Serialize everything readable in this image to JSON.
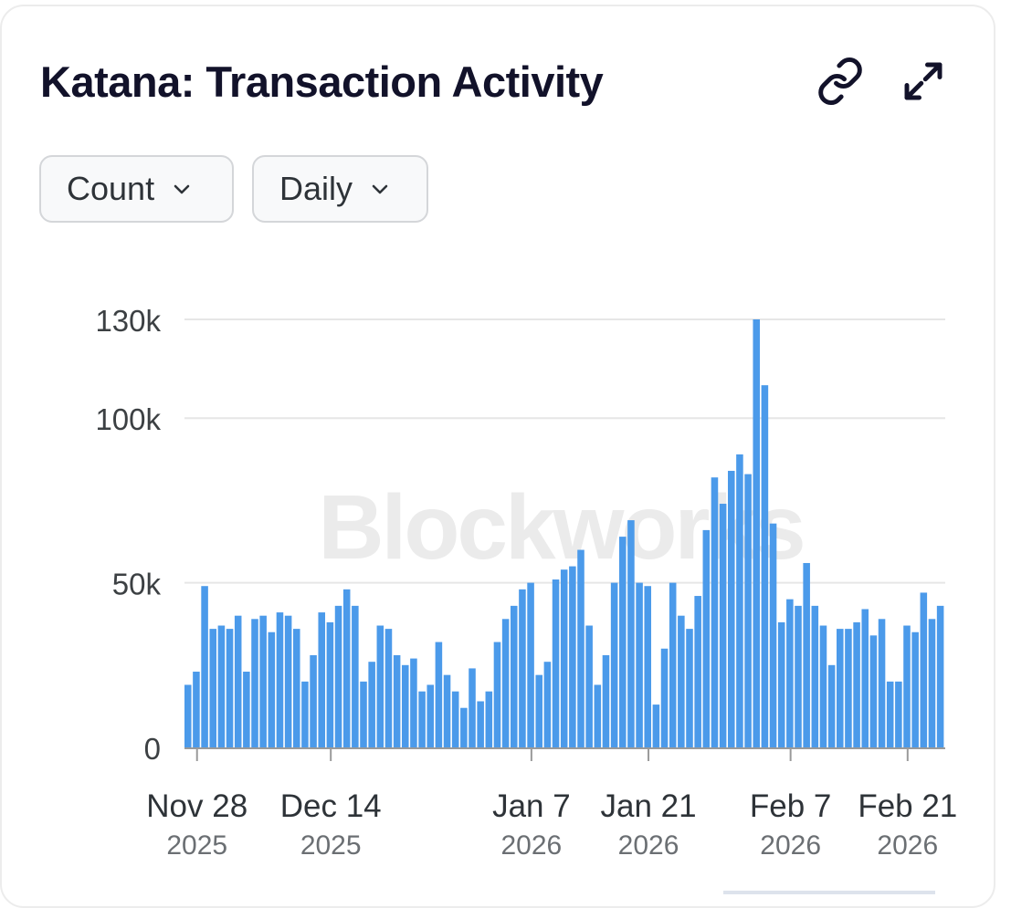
{
  "header": {
    "title": "Katana: Transaction Activity",
    "link_icon": "link-icon",
    "expand_icon": "expand-icon"
  },
  "controls": {
    "metric": "Count",
    "interval": "Daily"
  },
  "colors": {
    "bar": "#4b9aea",
    "grid": "#e6e6e6",
    "axis": "#9a9a9a",
    "watermark": "#ebebeb"
  },
  "watermark": "Blockworks",
  "chart_data": {
    "type": "bar",
    "title": "Katana: Transaction Activity",
    "xlabel": "",
    "ylabel": "",
    "ylim": [
      0,
      130000
    ],
    "yticks": [
      {
        "value": 0,
        "label": "0"
      },
      {
        "value": 50000,
        "label": "50k"
      },
      {
        "value": 100000,
        "label": "100k"
      },
      {
        "value": 130000,
        "label": "130k"
      }
    ],
    "xticks": [
      {
        "date": "2025-11-28",
        "line1": "Nov 28",
        "line2": "2025"
      },
      {
        "date": "2025-12-14",
        "line1": "Dec 14",
        "line2": "2025"
      },
      {
        "date": "2026-01-07",
        "line1": "Jan 7",
        "line2": "2026"
      },
      {
        "date": "2026-01-21",
        "line1": "Jan 21",
        "line2": "2026"
      },
      {
        "date": "2026-02-07",
        "line1": "Feb 7",
        "line2": "2026"
      },
      {
        "date": "2026-02-21",
        "line1": "Feb 21",
        "line2": "2026"
      }
    ],
    "x": [
      "2025-11-27",
      "2025-11-28",
      "2025-11-29",
      "2025-11-30",
      "2025-12-01",
      "2025-12-02",
      "2025-12-03",
      "2025-12-04",
      "2025-12-05",
      "2025-12-06",
      "2025-12-07",
      "2025-12-08",
      "2025-12-09",
      "2025-12-10",
      "2025-12-11",
      "2025-12-12",
      "2025-12-13",
      "2025-12-14",
      "2025-12-15",
      "2025-12-16",
      "2025-12-17",
      "2025-12-18",
      "2025-12-19",
      "2025-12-20",
      "2025-12-21",
      "2025-12-22",
      "2025-12-23",
      "2025-12-24",
      "2025-12-25",
      "2025-12-26",
      "2025-12-27",
      "2025-12-28",
      "2025-12-29",
      "2025-12-30",
      "2025-12-31",
      "2026-01-01",
      "2026-01-02",
      "2026-01-03",
      "2026-01-04",
      "2026-01-05",
      "2026-01-06",
      "2026-01-07",
      "2026-01-08",
      "2026-01-09",
      "2026-01-10",
      "2026-01-11",
      "2026-01-12",
      "2026-01-13",
      "2026-01-14",
      "2026-01-15",
      "2026-01-16",
      "2026-01-17",
      "2026-01-18",
      "2026-01-19",
      "2026-01-20",
      "2026-01-21",
      "2026-01-22",
      "2026-01-23",
      "2026-01-24",
      "2026-01-25",
      "2026-01-26",
      "2026-01-27",
      "2026-01-28",
      "2026-01-29",
      "2026-01-30",
      "2026-01-31",
      "2026-02-01",
      "2026-02-02",
      "2026-02-03",
      "2026-02-04",
      "2026-02-05",
      "2026-02-06",
      "2026-02-07",
      "2026-02-08",
      "2026-02-09",
      "2026-02-10",
      "2026-02-11",
      "2026-02-12",
      "2026-02-13",
      "2026-02-14",
      "2026-02-15",
      "2026-02-16",
      "2026-02-17",
      "2026-02-18",
      "2026-02-19",
      "2026-02-20",
      "2026-02-21",
      "2026-02-22",
      "2026-02-23",
      "2026-02-24",
      "2026-02-25"
    ],
    "series": [
      {
        "values": [
          19000,
          23000,
          49000,
          36000,
          37000,
          36000,
          40000,
          23000,
          39000,
          40000,
          35000,
          41000,
          40000,
          36000,
          20000,
          28000,
          41000,
          38000,
          43000,
          48000,
          43000,
          20000,
          26000,
          37000,
          36000,
          28000,
          25000,
          27000,
          17000,
          19000,
          32000,
          22000,
          17000,
          12000,
          24000,
          14000,
          17000,
          32000,
          39000,
          43000,
          48000,
          50000,
          22000,
          26000,
          51000,
          54000,
          55000,
          60000,
          37000,
          19000,
          28000,
          50000,
          64000,
          69000,
          50000,
          49000,
          13000,
          30000,
          50000,
          40000,
          36000,
          46000,
          66000,
          82000,
          74000,
          84000,
          89000,
          83000,
          130000,
          110000,
          68000,
          38000,
          45000,
          43000,
          56000,
          43000,
          37000,
          25000,
          36000,
          36000,
          38000,
          42000,
          34000,
          39000,
          20000,
          20000,
          37000,
          35000,
          47000,
          39000,
          43000
        ]
      }
    ]
  }
}
